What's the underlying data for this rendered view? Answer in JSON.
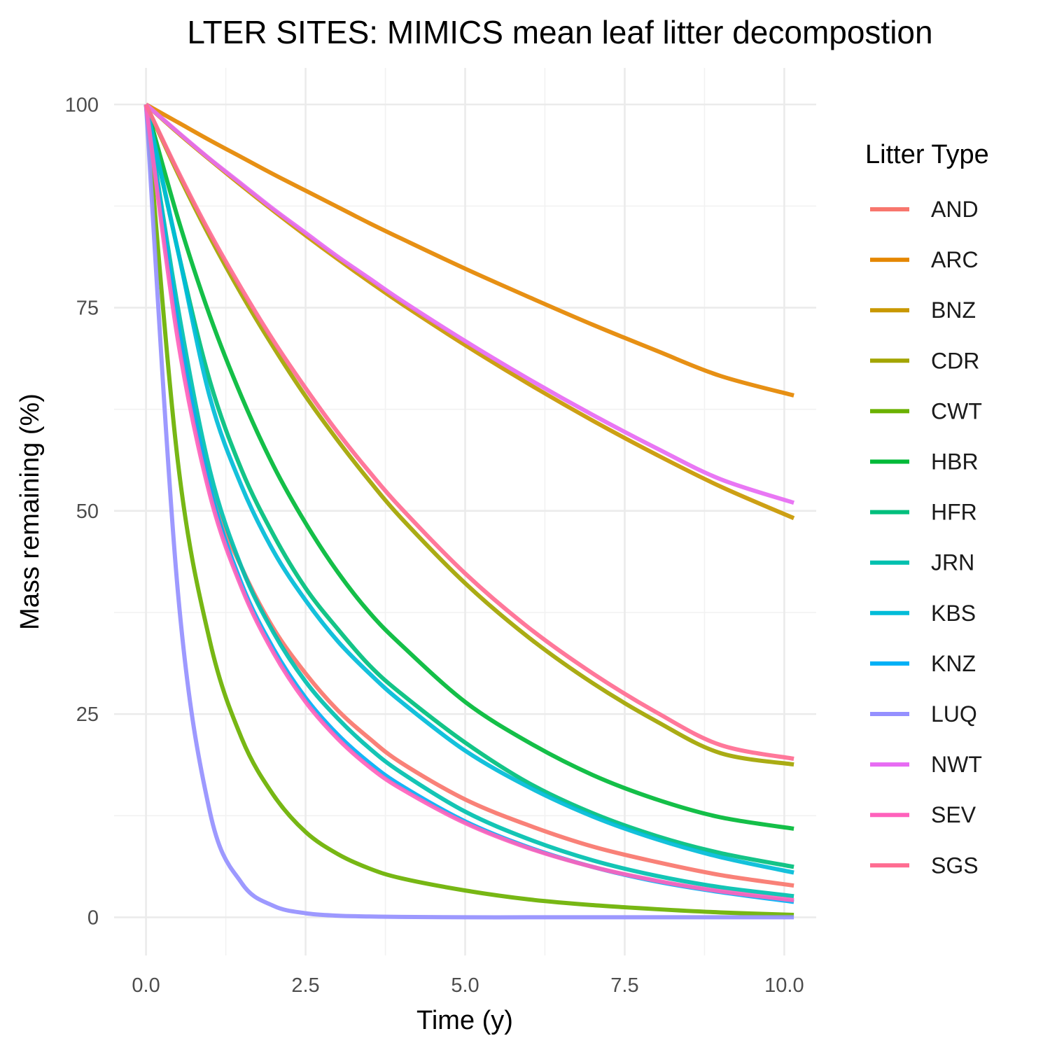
{
  "chart_data": {
    "type": "line",
    "title": "LTER SITES: MIMICS mean leaf litter decompostion",
    "xlabel": "Time (y)",
    "ylabel": "Mass remaining (%)",
    "xlim": [
      -0.5,
      10.5
    ],
    "ylim": [
      -4.7,
      104.5
    ],
    "x_ticks": [
      0.0,
      2.5,
      5.0,
      7.5,
      10.0
    ],
    "x_tick_labels": [
      "0.0",
      "2.5",
      "5.0",
      "7.5",
      "10.0"
    ],
    "y_ticks": [
      0,
      25,
      50,
      75,
      100
    ],
    "y_tick_labels": [
      "0",
      "25",
      "50",
      "75",
      "100"
    ],
    "grid": true,
    "legend_title": "Litter Type",
    "legend_position": "right",
    "x": [
      0,
      0.5,
      1,
      1.5,
      2,
      2.5,
      3,
      3.5,
      4,
      5,
      6,
      7,
      8,
      9,
      10.15
    ],
    "series": [
      {
        "name": "AND",
        "color": "#F8766D",
        "values": [
          100,
          73,
          53,
          43,
          35.5,
          30,
          25.5,
          22,
          19,
          14.5,
          11.3,
          8.7,
          6.8,
          5.2,
          3.9
        ]
      },
      {
        "name": "ARC",
        "color": "#E58700",
        "values": [
          100,
          97.8,
          95.6,
          93.5,
          91.4,
          89.4,
          87.4,
          85.4,
          83.5,
          79.8,
          76.3,
          72.9,
          69.7,
          66.6,
          64.2
        ]
      },
      {
        "name": "BNZ",
        "color": "#C99800",
        "values": [
          100,
          96.5,
          93.2,
          90,
          86.9,
          83.9,
          81,
          78.2,
          75.5,
          70.4,
          65.6,
          61.1,
          56.9,
          53,
          49.1
        ]
      },
      {
        "name": "CDR",
        "color": "#A3A500",
        "values": [
          100,
          91.5,
          83.7,
          76.6,
          70.1,
          64.1,
          58.7,
          53.7,
          49.1,
          41.1,
          34.4,
          28.8,
          24.1,
          20.2,
          18.8
        ]
      },
      {
        "name": "CWT",
        "color": "#6BB100",
        "values": [
          100,
          56,
          34,
          22,
          15,
          10.5,
          7.8,
          6,
          4.8,
          3.3,
          2.2,
          1.5,
          1,
          0.6,
          0.3
        ]
      },
      {
        "name": "HBR",
        "color": "#00BA38",
        "values": [
          100,
          86,
          74,
          64,
          55.5,
          48.5,
          42.5,
          37.5,
          33.5,
          26.5,
          21.5,
          17.5,
          14.5,
          12.3,
          10.9
        ]
      },
      {
        "name": "HFR",
        "color": "#00BF7D",
        "values": [
          100,
          82,
          66,
          55,
          47,
          40.5,
          35.5,
          31,
          27.5,
          21.5,
          16.5,
          12.8,
          10,
          7.9,
          6.2
        ]
      },
      {
        "name": "JRN",
        "color": "#00C0AF",
        "values": [
          100,
          75,
          55,
          43,
          35,
          29,
          24.5,
          20.8,
          17.8,
          13,
          9.6,
          7,
          5.1,
          3.7,
          2.6
        ]
      },
      {
        "name": "KBS",
        "color": "#00BCD8",
        "values": [
          100,
          82,
          64,
          53,
          45,
          39,
          34,
          30,
          26.5,
          20.5,
          16,
          12.4,
          9.6,
          7.4,
          5.5
        ]
      },
      {
        "name": "KNZ",
        "color": "#00B0F6",
        "values": [
          100,
          73,
          53,
          41,
          33,
          27,
          22.5,
          19,
          16.2,
          11.8,
          8.6,
          6.2,
          4.4,
          3.1,
          1.9
        ]
      },
      {
        "name": "LUQ",
        "color": "#9590FF",
        "values": [
          100,
          40,
          13,
          4.2,
          1.4,
          0.5,
          0.2,
          0.1,
          0.05,
          0,
          0,
          0,
          0,
          0,
          0
        ]
      },
      {
        "name": "NWT",
        "color": "#E76BF3",
        "values": [
          100,
          96.6,
          93.3,
          90.2,
          87.1,
          84.2,
          81.3,
          78.6,
          75.9,
          70.9,
          66.2,
          61.8,
          57.7,
          53.9,
          51
        ]
      },
      {
        "name": "SEV",
        "color": "#FF62BC",
        "values": [
          100,
          71,
          52,
          40.5,
          32.5,
          26.5,
          22,
          18.5,
          15.8,
          11.6,
          8.5,
          6.2,
          4.5,
          3.2,
          2.1
        ]
      },
      {
        "name": "SGS",
        "color": "#FF6C91",
        "values": [
          100,
          91.8,
          84.2,
          77.3,
          70.9,
          65.1,
          59.7,
          54.8,
          50.3,
          42.3,
          35.6,
          30,
          25.2,
          21.2,
          19.5
        ]
      }
    ]
  }
}
